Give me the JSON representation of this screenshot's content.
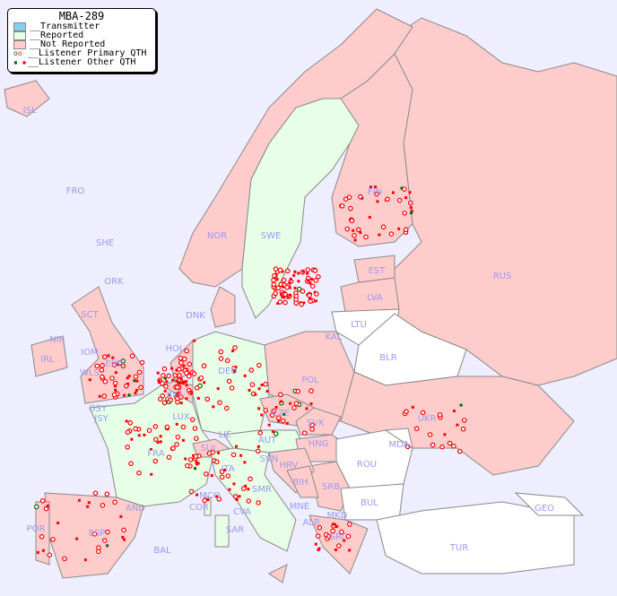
{
  "title": "MBA-289",
  "legend": {
    "items": [
      {
        "label": "__Transmitter",
        "color": "#88ccee"
      },
      {
        "label": "__Reported",
        "color": "#e6ffe6"
      },
      {
        "label": "__Not Reported",
        "color": "#ffcccc"
      },
      {
        "label": "__Listener Primary QTH"
      },
      {
        "label": "__Listener Other QTH"
      }
    ]
  },
  "colors": {
    "sea": "#eeeeff",
    "reported": "#e6ffe6",
    "not_reported": "#ffcccc",
    "no_data": "#ffffff",
    "listener": "#ff0000",
    "listener_reported": "#006600",
    "label": "#9999ee"
  },
  "countries": {
    "reported": [
      "SWE",
      "DEU",
      "FRA",
      "ITA",
      "SUI",
      "LIE",
      "AUT",
      "LUX",
      "SMR",
      "CVA",
      "MCO",
      "COR",
      "SAR",
      "SVN"
    ],
    "not_reported": [
      "ISL",
      "FRO",
      "SHE",
      "ORK",
      "NOR",
      "FIN",
      "EST",
      "LVA",
      "RUS",
      "DNK",
      "HOL",
      "BEL",
      "POL",
      "UKR",
      "IRL",
      "NIR",
      "SCT",
      "WLS",
      "IOM",
      "ENG",
      "GSY",
      "JSY",
      "CZE",
      "SVK",
      "HNG",
      "HRV",
      "BIH",
      "SRB",
      "MNE",
      "ALB",
      "MKD",
      "GRC",
      "ESP",
      "POR",
      "AND",
      "BAL"
    ],
    "no_data": [
      "LTU",
      "KAL",
      "BLR",
      "MDA",
      "ROU",
      "BUL",
      "TUR",
      "GEO"
    ]
  },
  "labels": [
    "ISL",
    "FRO",
    "SHE",
    "ORK",
    "NOR",
    "SWE",
    "FIN",
    "EST",
    "LVA",
    "RUS",
    "LTU",
    "KAL",
    "BLR",
    "DNK",
    "HOL",
    "DEU",
    "POL",
    "UKR",
    "IRL",
    "NIR",
    "SCT",
    "IOM",
    "WLS",
    "ENG",
    "GSY",
    "JSY",
    "BEL",
    "LUX",
    "FRA",
    "SUI",
    "LIE",
    "AUT",
    "CZE",
    "SVK",
    "HNG",
    "MDA",
    "ROU",
    "SVN",
    "HRV",
    "BIH",
    "SRB",
    "ITA",
    "MCO",
    "COR",
    "SMR",
    "CVA",
    "MNE",
    "ALB",
    "MKD",
    "BUL",
    "GRC",
    "TUR",
    "GEO",
    "ESP",
    "POR",
    "AND",
    "BAL",
    "SAR"
  ]
}
